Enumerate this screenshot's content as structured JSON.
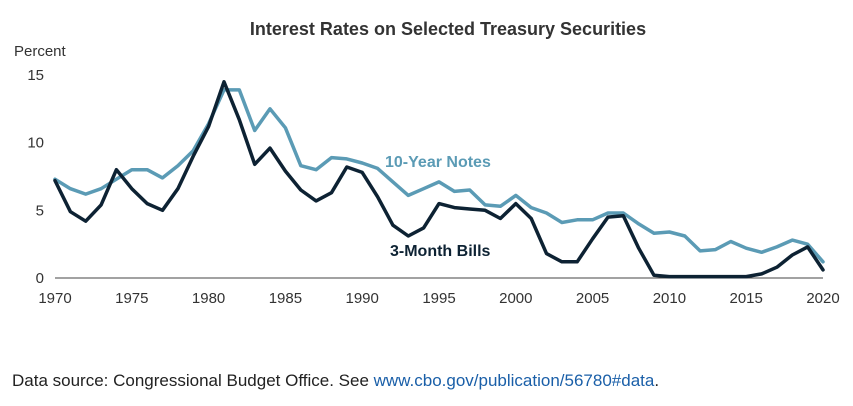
{
  "chart_data": {
    "type": "line",
    "title": "Interest Rates on Selected Treasury Securities",
    "ylabel": "Percent",
    "xlabel": "",
    "xlim": [
      1970,
      2020
    ],
    "ylim": [
      0,
      15
    ],
    "x_ticks": [
      "1970",
      "1975",
      "1980",
      "1985",
      "1990",
      "1995",
      "2000",
      "2005",
      "2010",
      "2015",
      "2020"
    ],
    "y_ticks": [
      "0",
      "5",
      "10",
      "15"
    ],
    "grid": false,
    "legend": "inline labels",
    "x": [
      1970,
      1971,
      1972,
      1973,
      1974,
      1975,
      1976,
      1977,
      1978,
      1979,
      1980,
      1981,
      1982,
      1983,
      1984,
      1985,
      1986,
      1987,
      1988,
      1989,
      1990,
      1991,
      1992,
      1993,
      1994,
      1995,
      1996,
      1997,
      1998,
      1999,
      2000,
      2001,
      2002,
      2003,
      2004,
      2005,
      2006,
      2007,
      2008,
      2009,
      2010,
      2011,
      2012,
      2013,
      2014,
      2015,
      2016,
      2017,
      2018,
      2019,
      2020
    ],
    "series": [
      {
        "name": "10-Year Notes",
        "color": "#5b9bb5",
        "values": [
          7.3,
          6.6,
          6.2,
          6.6,
          7.3,
          8.0,
          8.0,
          7.4,
          8.3,
          9.4,
          11.4,
          13.9,
          13.9,
          10.9,
          12.5,
          11.1,
          8.3,
          8.0,
          8.9,
          8.8,
          8.5,
          8.1,
          7.1,
          6.1,
          6.6,
          7.1,
          6.4,
          6.5,
          5.4,
          5.3,
          6.1,
          5.2,
          4.8,
          4.1,
          4.3,
          4.3,
          4.8,
          4.8,
          4.0,
          3.3,
          3.4,
          3.1,
          2.0,
          2.1,
          2.7,
          2.2,
          1.9,
          2.3,
          2.8,
          2.5,
          1.2
        ]
      },
      {
        "name": "3-Month Bills",
        "color": "#0d2233",
        "values": [
          7.2,
          4.9,
          4.2,
          5.4,
          8.0,
          6.6,
          5.5,
          5.0,
          6.6,
          9.0,
          11.2,
          14.5,
          11.7,
          8.4,
          9.6,
          7.9,
          6.5,
          5.7,
          6.3,
          8.2,
          7.8,
          6.0,
          3.9,
          3.1,
          3.7,
          5.5,
          5.2,
          5.1,
          5.0,
          4.4,
          5.5,
          4.4,
          1.8,
          1.2,
          1.2,
          2.9,
          4.5,
          4.6,
          2.2,
          0.2,
          0.1,
          0.1,
          0.1,
          0.1,
          0.1,
          0.1,
          0.3,
          0.8,
          1.7,
          2.3,
          0.6
        ]
      }
    ],
    "series_labels": {
      "notes": "10-Year Notes",
      "bills": "3-Month Bills"
    }
  },
  "footer": {
    "prefix": "Data source: Congressional Budget Office. See ",
    "link_text": "www.cbo.gov/publication/56780#data",
    "suffix": "."
  }
}
